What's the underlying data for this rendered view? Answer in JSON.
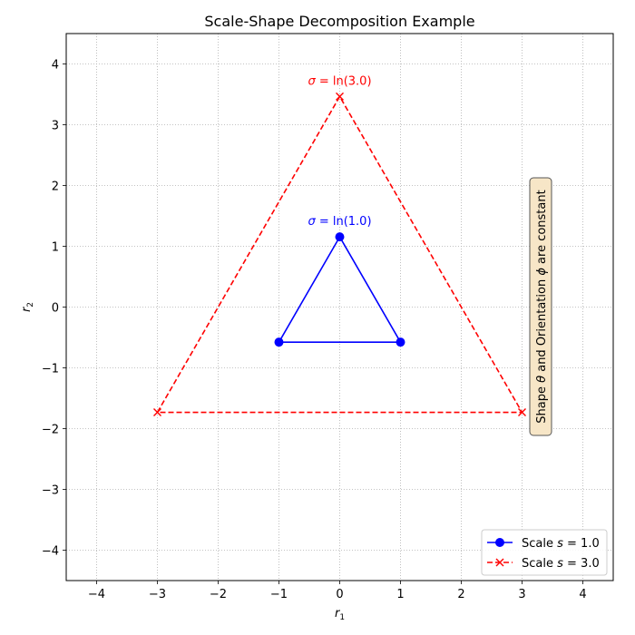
{
  "chart_data": {
    "type": "line",
    "title": "Scale-Shape Decomposition Example",
    "xlabel": {
      "main": "r",
      "sub": "1"
    },
    "ylabel": {
      "main": "r",
      "sub": "2"
    },
    "xlim": [
      -4.5,
      4.5
    ],
    "ylim": [
      -4.5,
      4.5
    ],
    "xticks": [
      -4,
      -3,
      -2,
      -1,
      0,
      1,
      2,
      3,
      4
    ],
    "yticks": [
      -4,
      -3,
      -2,
      -1,
      0,
      1,
      2,
      3,
      4
    ],
    "tick_labels": [
      "−4",
      "−3",
      "−2",
      "−1",
      "0",
      "1",
      "2",
      "3",
      "4"
    ],
    "grid": true,
    "legend_position": "bottom-right",
    "series": [
      {
        "legend_prefix": "Scale ",
        "legend_var": "s",
        "legend_value": " = 1.0",
        "color": "#0000ff",
        "marker": "circle",
        "linestyle": "solid",
        "points": [
          [
            0,
            1.1547
          ],
          [
            -1,
            -0.5774
          ],
          [
            1,
            -0.5774
          ],
          [
            0,
            1.1547
          ]
        ],
        "annotation": {
          "x": 0,
          "y": 1.1547,
          "var": "σ",
          "text": " = ln(1.0)"
        }
      },
      {
        "legend_prefix": "Scale ",
        "legend_var": "s",
        "legend_value": " = 3.0",
        "color": "#ff0000",
        "marker": "x",
        "linestyle": "dashed",
        "points": [
          [
            0,
            3.4641
          ],
          [
            -3,
            -1.7321
          ],
          [
            3,
            -1.7321
          ],
          [
            0,
            3.4641
          ]
        ],
        "annotation": {
          "x": 0,
          "y": 3.4641,
          "var": "σ",
          "text": " = ln(3.0)"
        }
      }
    ],
    "side_note": {
      "position": "right",
      "parts": [
        {
          "t": "Shape ",
          "italic": false
        },
        {
          "t": "θ",
          "italic": true
        },
        {
          "t": " and Orientation ",
          "italic": false
        },
        {
          "t": "ϕ",
          "italic": true
        },
        {
          "t": " are constant",
          "italic": false
        }
      ],
      "background": "#f7e6c7"
    }
  }
}
